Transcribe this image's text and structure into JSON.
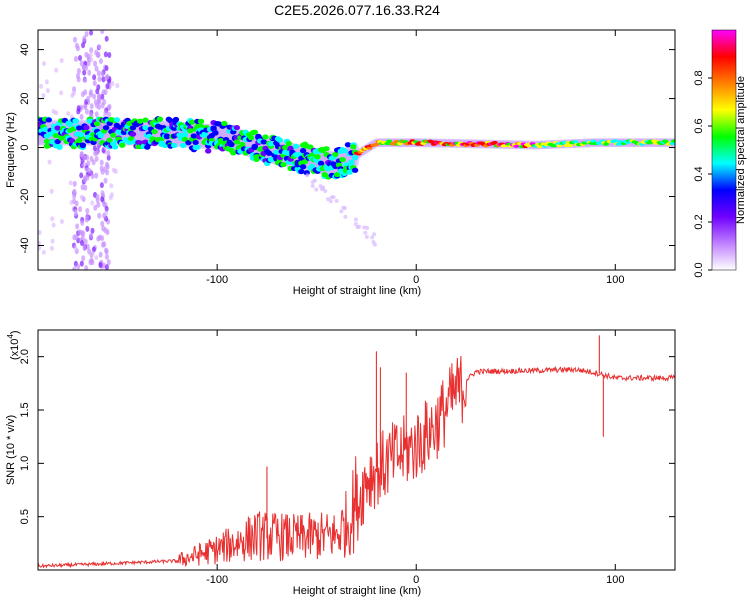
{
  "title": "C2E5.2026.077.16.33.R24",
  "chart_data": [
    {
      "type": "heatmap",
      "xlabel": "Height of straight line (km)",
      "ylabel": "Frequency (Hz)",
      "xlim": [
        -190,
        130
      ],
      "ylim": [
        -50,
        48
      ],
      "xticks": [
        -100,
        0,
        100
      ],
      "xtick_labels": [
        "-100",
        "0",
        "100"
      ],
      "yticks": [
        -40,
        -20,
        0,
        20,
        40
      ],
      "ytick_labels": [
        "-40",
        "-20",
        "0",
        "20",
        "40"
      ],
      "trend": [
        [
          -190,
          6
        ],
        [
          -130,
          6
        ],
        [
          -95,
          4
        ],
        [
          -70,
          -2
        ],
        [
          -40,
          -7
        ],
        [
          -30,
          -3
        ],
        [
          -20,
          2
        ],
        [
          0,
          2
        ],
        [
          60,
          1
        ],
        [
          90,
          2
        ],
        [
          130,
          2
        ]
      ],
      "colorbar": {
        "label": "Normalized spectral amplitude",
        "range": [
          0,
          1
        ],
        "ticks": [
          0.0,
          0.2,
          0.4,
          0.6,
          0.8
        ],
        "tick_labels": [
          "0.0",
          "0.2",
          "0.4",
          "0.6",
          "0.8"
        ],
        "colors": [
          "#ffffff",
          "#c080ff",
          "#7000ff",
          "#0000ff",
          "#00ffff",
          "#00ff00",
          "#ffff00",
          "#ff8000",
          "#ff0000",
          "#ff00ff"
        ]
      }
    },
    {
      "type": "line",
      "xlabel": "Height of straight line (km)",
      "ylabel": "SNR (10 * v/v)",
      "y_multiplier": "(x10",
      "y_multiplier_exp": "4",
      "y_multiplier_close": ")",
      "xlim": [
        -190,
        130
      ],
      "ylim": [
        0,
        2.25
      ],
      "xticks": [
        -100,
        0,
        100
      ],
      "xtick_labels": [
        "-100",
        "0",
        "100"
      ],
      "yticks": [
        0.5,
        1.0,
        1.5,
        2.0
      ],
      "ytick_labels": [
        "0.5",
        "1.0",
        "1.5",
        "2.0"
      ],
      "color": "#e83030",
      "envelope": [
        [
          -190,
          0.03
        ],
        [
          -160,
          0.05
        ],
        [
          -120,
          0.08
        ],
        [
          -100,
          0.18
        ],
        [
          -80,
          0.3
        ],
        [
          -60,
          0.28
        ],
        [
          -40,
          0.3
        ],
        [
          -33,
          0.45
        ],
        [
          -25,
          0.9
        ],
        [
          -10,
          1.1
        ],
        [
          0,
          1.2
        ],
        [
          10,
          1.4
        ],
        [
          20,
          1.7
        ],
        [
          30,
          1.86
        ],
        [
          60,
          1.87
        ],
        [
          80,
          1.88
        ],
        [
          90,
          1.85
        ],
        [
          100,
          1.8
        ],
        [
          130,
          1.8
        ]
      ],
      "spikes": [
        [
          -20,
          2.05
        ],
        [
          -18,
          1.9
        ],
        [
          -75,
          0.97
        ],
        [
          92,
          2.2
        ],
        [
          94,
          1.25
        ],
        [
          -5,
          1.85
        ]
      ]
    }
  ]
}
